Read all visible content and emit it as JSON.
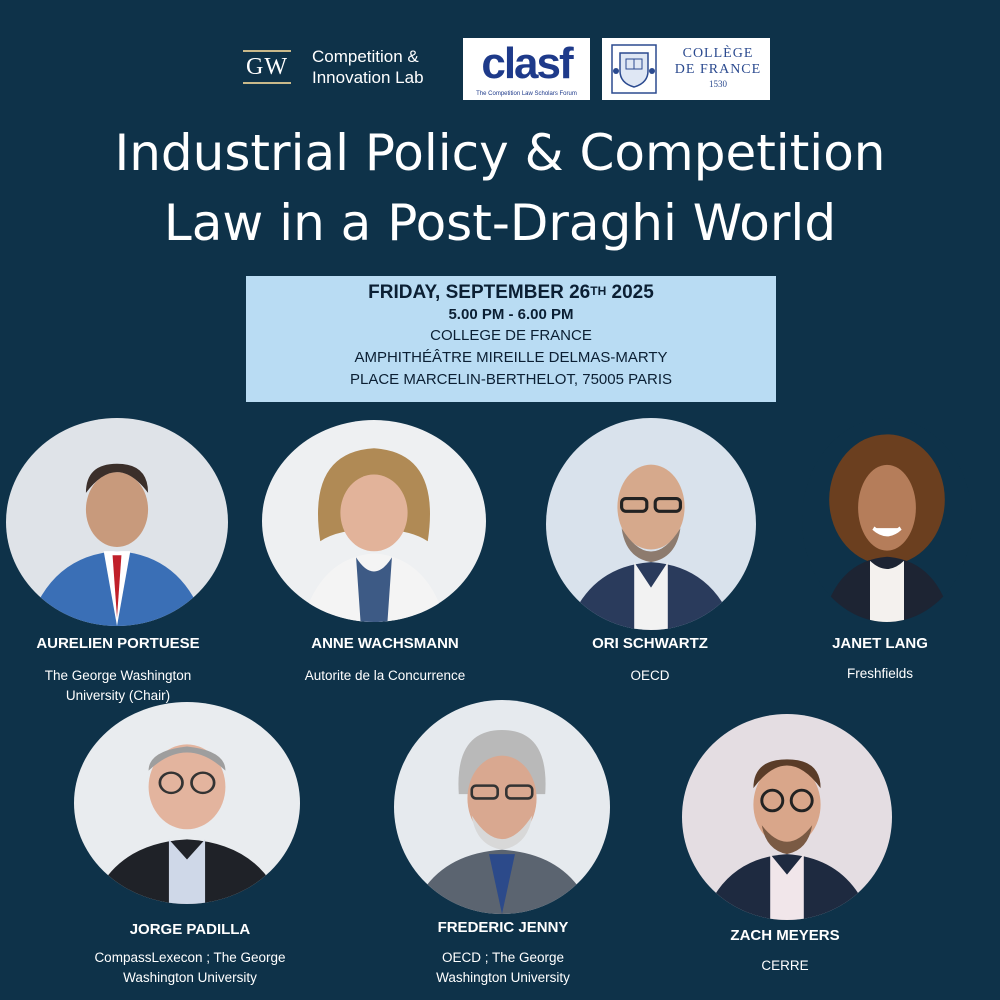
{
  "logos": {
    "gw": {
      "mark": "GW",
      "lab_line1": "Competition &",
      "lab_line2": "Innovation Lab"
    },
    "clasf": {
      "word": "clasf",
      "tagline": "The Competition Law Scholars Forum"
    },
    "college": {
      "line1": "COLLÈGE",
      "line2": "DE FRANCE",
      "line3": "1530"
    }
  },
  "title": {
    "line1": "Industrial Policy & Competition",
    "line2": "Law in a Post-Draghi World"
  },
  "event": {
    "date_prefix": "FRIDAY, SEPTEMBER 26",
    "date_sup": "TH",
    "date_suffix": " 2025",
    "time": "5.00 PM - 6.00 PM",
    "venue": "COLLEGE DE FRANCE",
    "room": "AMPHITHÉÂTRE MIREILLE DELMAS-MARTY",
    "address": "PLACE MARCELIN-BERTHELOT, 75005 PARIS"
  },
  "speakers": [
    {
      "name": "AURELIEN PORTUESE",
      "org_line1": "The George Washington",
      "org_line2": "University (Chair)"
    },
    {
      "name": "ANNE WACHSMANN",
      "org_line1": "Autorite de la Concurrence",
      "org_line2": ""
    },
    {
      "name": "ORI SCHWARTZ",
      "org_line1": "OECD",
      "org_line2": ""
    },
    {
      "name": "JANET LANG",
      "org_line1": "Freshfields",
      "org_line2": ""
    },
    {
      "name": "JORGE PADILLA",
      "org_line1": "CompassLexecon ; The George",
      "org_line2": "Washington University"
    },
    {
      "name": "FREDERIC JENNY",
      "org_line1": "OECD ; The George",
      "org_line2": "Washington University"
    },
    {
      "name": "ZACH MEYERS",
      "org_line1": "CERRE",
      "org_line2": ""
    }
  ],
  "colors": {
    "background": "#0e3249",
    "info_box": "#b9dcf3",
    "text": "#ffffff"
  }
}
